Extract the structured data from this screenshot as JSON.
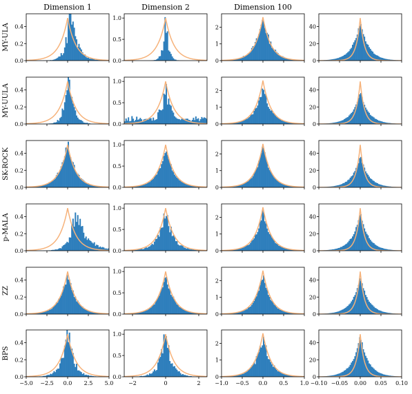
{
  "chart_data": {
    "type": "histogram-grid",
    "column_titles": [
      "Dimension 1",
      "Dimension 2",
      "Dimension 100",
      ""
    ],
    "row_labels": [
      "MY-ULA",
      "MY-UULA",
      "SK-ROCK",
      "p-MALA",
      "ZZ",
      "BPS"
    ],
    "colors": {
      "histogram": "#2f7fbc",
      "density": "#f6b27a"
    },
    "columns": [
      {
        "xlim": [
          -5,
          5
        ],
        "xticks": [
          -5,
          -2.5,
          0,
          2.5,
          5
        ],
        "xtick_labels": [
          "−5.0",
          "−2.5",
          "0.0",
          "2.5",
          "5.0"
        ],
        "ylim": [
          0,
          0.55
        ],
        "yticks": [
          0,
          0.2,
          0.4
        ],
        "ytick_labels": [
          "0.0",
          "0.2",
          "0.4"
        ],
        "laplace_peak": 0.5
      },
      {
        "xlim": [
          -2.5,
          2.5
        ],
        "xticks": [
          -2,
          0,
          2
        ],
        "xtick_labels": [
          "−2",
          "0",
          "2"
        ],
        "ylim": [
          0,
          1.1
        ],
        "yticks": [
          0,
          0.5,
          1.0
        ],
        "ytick_labels": [
          "0.0",
          "0.5",
          "1.0"
        ],
        "laplace_peak": 1.0
      },
      {
        "xlim": [
          -1,
          1
        ],
        "xticks": [
          -1,
          -0.5,
          0,
          0.5,
          1
        ],
        "xtick_labels": [
          "−1.0",
          "−0.5",
          "0.0",
          "0.5",
          "1.0"
        ],
        "ylim": [
          0,
          2.8
        ],
        "yticks": [
          0,
          1,
          2
        ],
        "ytick_labels": [
          "0",
          "1",
          "2"
        ],
        "laplace_peak": 2.6
      },
      {
        "xlim": [
          -0.1,
          0.1
        ],
        "xticks": [
          -0.1,
          -0.05,
          0,
          0.05,
          0.1
        ],
        "xtick_labels": [
          "−0.10",
          "−0.05",
          "0.00",
          "0.05",
          "0.10"
        ],
        "ylim": [
          0,
          55
        ],
        "yticks": [
          0,
          20,
          40
        ],
        "ytick_labels": [
          "0",
          "20",
          "40"
        ],
        "laplace_peak": 50
      }
    ],
    "histograms": [
      [
        {
          "center": 0.3,
          "scale": 0.6,
          "peak": 0.6,
          "skew": 0.3,
          "noise": 0.35,
          "seed": 11
        },
        {
          "center": 0.0,
          "scale": 0.15,
          "peak": 1.1,
          "skew": 0.0,
          "noise": 0.3,
          "seed": 12
        },
        {
          "center": 0.0,
          "scale": 0.2,
          "peak": 2.6,
          "skew": 0.0,
          "noise": 0.15,
          "seed": 13
        },
        {
          "center": 0.0,
          "scale": 0.02,
          "peak": 45,
          "skew": 0.0,
          "noise": 0.05,
          "seed": 14
        }
      ],
      [
        {
          "center": 0.0,
          "scale": 0.5,
          "peak": 0.58,
          "skew": 0.2,
          "noise": 0.35,
          "seed": 21
        },
        {
          "center": 0.0,
          "scale": 0.35,
          "peak": 0.8,
          "skew": 0.0,
          "noise": 0.35,
          "seed": 22,
          "floor": 0.12
        },
        {
          "center": 0.0,
          "scale": 0.2,
          "peak": 2.2,
          "skew": 0.0,
          "noise": 0.12,
          "seed": 23
        },
        {
          "center": 0.0,
          "scale": 0.02,
          "peak": 38,
          "skew": 0.0,
          "noise": 0.05,
          "seed": 24
        }
      ],
      [
        {
          "center": 0.0,
          "scale": 1.0,
          "peak": 0.52,
          "skew": 0.0,
          "noise": 0.12,
          "seed": 31
        },
        {
          "center": 0.0,
          "scale": 0.5,
          "peak": 0.95,
          "skew": 0.0,
          "noise": 0.1,
          "seed": 32
        },
        {
          "center": 0.0,
          "scale": 0.19,
          "peak": 2.5,
          "skew": 0.0,
          "noise": 0.08,
          "seed": 33
        },
        {
          "center": 0.0,
          "scale": 0.02,
          "peak": 37,
          "skew": 0.0,
          "noise": 0.05,
          "seed": 34
        }
      ],
      [
        {
          "center": 0.9,
          "scale": 0.9,
          "peak": 0.45,
          "skew": 0.5,
          "noise": 0.3,
          "seed": 41
        },
        {
          "center": 0.0,
          "scale": 0.45,
          "peak": 0.95,
          "skew": 0.0,
          "noise": 0.22,
          "seed": 42
        },
        {
          "center": 0.0,
          "scale": 0.19,
          "peak": 2.4,
          "skew": 0.0,
          "noise": 0.1,
          "seed": 43
        },
        {
          "center": 0.0,
          "scale": 0.02,
          "peak": 44,
          "skew": 0.0,
          "noise": 0.05,
          "seed": 44
        }
      ],
      [
        {
          "center": 0.0,
          "scale": 1.0,
          "peak": 0.48,
          "skew": 0.0,
          "noise": 0.12,
          "seed": 51
        },
        {
          "center": 0.0,
          "scale": 0.5,
          "peak": 0.95,
          "skew": 0.0,
          "noise": 0.1,
          "seed": 52
        },
        {
          "center": 0.0,
          "scale": 0.19,
          "peak": 2.4,
          "skew": 0.0,
          "noise": 0.08,
          "seed": 53
        },
        {
          "center": 0.0,
          "scale": 0.02,
          "peak": 44,
          "skew": 0.0,
          "noise": 0.05,
          "seed": 54
        }
      ],
      [
        {
          "center": 0.0,
          "scale": 0.7,
          "peak": 0.55,
          "skew": 0.0,
          "noise": 0.3,
          "seed": 61
        },
        {
          "center": 0.0,
          "scale": 0.35,
          "peak": 1.05,
          "skew": 0.0,
          "noise": 0.3,
          "seed": 62
        },
        {
          "center": 0.0,
          "scale": 0.2,
          "peak": 2.3,
          "skew": 0.0,
          "noise": 0.18,
          "seed": 63
        },
        {
          "center": 0.0,
          "scale": 0.02,
          "peak": 48,
          "skew": 0.0,
          "noise": 0.05,
          "seed": 64
        }
      ]
    ]
  }
}
